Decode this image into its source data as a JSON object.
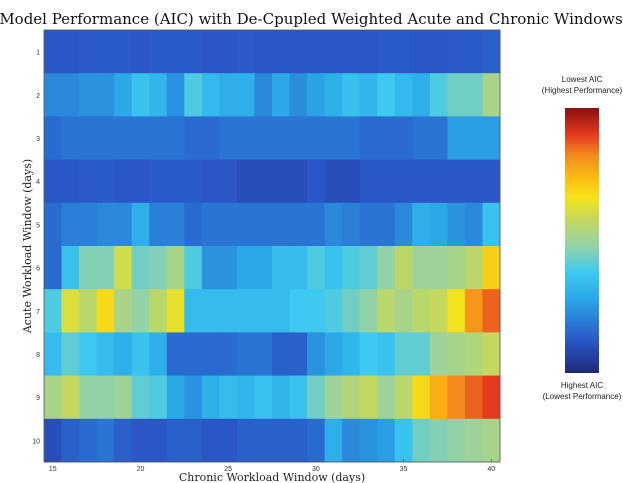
{
  "chart_data": {
    "type": "heatmap",
    "title": "Model Performance (AIC) with De-Cpupled  Weighted Acute and Chronic Windows",
    "xlabel": "Chronic Workload Window (days)",
    "ylabel": "Acute Workload Window (days)",
    "x": [
      15,
      16,
      17,
      18,
      19,
      20,
      21,
      22,
      23,
      24,
      25,
      26,
      27,
      28,
      29,
      30,
      31,
      32,
      33,
      34,
      35,
      36,
      37,
      38,
      39,
      40
    ],
    "y": [
      1,
      2,
      3,
      4,
      5,
      6,
      7,
      8,
      9,
      10
    ],
    "x_ticks": [
      "15",
      "20",
      "25",
      "30",
      "35",
      "40"
    ],
    "y_ticks": [
      "1",
      "2",
      "3",
      "4",
      "5",
      "6",
      "7",
      "8",
      "9",
      "10"
    ],
    "value_scale": "0 = highest AIC (lowest performance), 1 = lowest AIC (highest performance)",
    "values": [
      [
        0.12,
        0.12,
        0.13,
        0.13,
        0.13,
        0.12,
        0.13,
        0.13,
        0.13,
        0.12,
        0.12,
        0.13,
        0.12,
        0.12,
        0.12,
        0.12,
        0.12,
        0.12,
        0.12,
        0.13,
        0.13,
        0.12,
        0.12,
        0.13,
        0.13,
        0.14
      ],
      [
        0.22,
        0.22,
        0.24,
        0.24,
        0.28,
        0.36,
        0.32,
        0.24,
        0.4,
        0.33,
        0.3,
        0.3,
        0.22,
        0.28,
        0.23,
        0.27,
        0.3,
        0.35,
        0.32,
        0.38,
        0.33,
        0.3,
        0.4,
        0.44,
        0.44,
        0.52
      ],
      [
        0.16,
        0.18,
        0.18,
        0.18,
        0.18,
        0.18,
        0.18,
        0.18,
        0.16,
        0.16,
        0.18,
        0.18,
        0.18,
        0.18,
        0.18,
        0.18,
        0.18,
        0.18,
        0.16,
        0.16,
        0.16,
        0.18,
        0.18,
        0.26,
        0.26,
        0.26
      ],
      [
        0.12,
        0.12,
        0.13,
        0.13,
        0.12,
        0.12,
        0.13,
        0.13,
        0.13,
        0.12,
        0.12,
        0.1,
        0.1,
        0.1,
        0.1,
        0.12,
        0.1,
        0.1,
        0.12,
        0.12,
        0.12,
        0.12,
        0.12,
        0.12,
        0.12,
        0.12
      ],
      [
        0.16,
        0.2,
        0.2,
        0.22,
        0.22,
        0.3,
        0.2,
        0.2,
        0.16,
        0.18,
        0.18,
        0.18,
        0.18,
        0.18,
        0.18,
        0.18,
        0.22,
        0.2,
        0.18,
        0.18,
        0.22,
        0.3,
        0.28,
        0.24,
        0.22,
        0.36
      ],
      [
        0.16,
        0.36,
        0.46,
        0.46,
        0.6,
        0.44,
        0.46,
        0.52,
        0.4,
        0.24,
        0.24,
        0.28,
        0.28,
        0.34,
        0.34,
        0.4,
        0.36,
        0.4,
        0.42,
        0.48,
        0.56,
        0.5,
        0.5,
        0.52,
        0.56,
        0.7
      ],
      [
        0.4,
        0.62,
        0.56,
        0.68,
        0.52,
        0.48,
        0.56,
        0.64,
        0.34,
        0.34,
        0.34,
        0.34,
        0.34,
        0.34,
        0.38,
        0.38,
        0.4,
        0.44,
        0.48,
        0.56,
        0.52,
        0.56,
        0.58,
        0.66,
        0.8,
        0.86
      ],
      [
        0.34,
        0.42,
        0.38,
        0.34,
        0.3,
        0.36,
        0.3,
        0.16,
        0.16,
        0.16,
        0.16,
        0.18,
        0.18,
        0.14,
        0.14,
        0.24,
        0.28,
        0.32,
        0.38,
        0.36,
        0.42,
        0.42,
        0.5,
        0.52,
        0.54,
        0.58
      ],
      [
        0.52,
        0.58,
        0.48,
        0.48,
        0.5,
        0.42,
        0.4,
        0.28,
        0.24,
        0.3,
        0.34,
        0.32,
        0.36,
        0.32,
        0.36,
        0.44,
        0.5,
        0.54,
        0.58,
        0.5,
        0.56,
        0.68,
        0.76,
        0.82,
        0.86,
        0.9
      ],
      [
        0.1,
        0.14,
        0.16,
        0.18,
        0.14,
        0.12,
        0.12,
        0.14,
        0.14,
        0.12,
        0.12,
        0.14,
        0.14,
        0.14,
        0.14,
        0.16,
        0.3,
        0.22,
        0.24,
        0.26,
        0.36,
        0.44,
        0.46,
        0.48,
        0.5,
        0.52
      ]
    ],
    "colorbar": {
      "colormap": "parula-jet",
      "top_label_line1": "Lowest AIC",
      "top_label_line2": "(Highest Performance)",
      "bottom_label_line1": "Highest AIC",
      "bottom_label_line2": "(Lowest Performance)"
    },
    "grid": false,
    "legend": "colorbar right"
  }
}
